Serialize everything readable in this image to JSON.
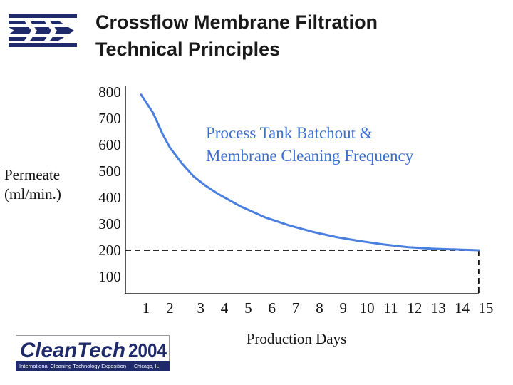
{
  "header": {
    "title_line1": "Crossflow Membrane Filtration",
    "title_line2": "Technical Principles",
    "logo_icon": "striped-arrows-logo-icon"
  },
  "chart_data": {
    "type": "line",
    "title": "",
    "ylabel_line1": "Permeate",
    "ylabel_line2": "(ml/min.)",
    "xlabel": "Production Days",
    "y_ticks": [
      "800",
      "700",
      "600",
      "500",
      "400",
      "300",
      "200",
      "100"
    ],
    "y_tick_values": [
      800,
      700,
      600,
      500,
      400,
      300,
      200,
      100
    ],
    "x_ticks": [
      "1",
      "2",
      "3",
      "4",
      "5",
      "6",
      "7",
      "8",
      "9",
      "10",
      "11",
      "12",
      "13",
      "14",
      "15"
    ],
    "ylim": [
      50,
      800
    ],
    "xlim": [
      1,
      15
    ],
    "grid": false,
    "series": [
      {
        "color": "#4a7fe0",
        "x": [
          1,
          1.3,
          1.7,
          2,
          2.5,
          3,
          3.5,
          4,
          5,
          6,
          7,
          8,
          9,
          10,
          11,
          12,
          13,
          14,
          15
        ],
        "values": [
          790,
          720,
          640,
          590,
          530,
          480,
          445,
          415,
          365,
          325,
          295,
          270,
          250,
          235,
          222,
          212,
          206,
          203,
          200
        ]
      }
    ],
    "threshold": {
      "value": 200,
      "style": "dashed"
    },
    "annotation_line1": "Process Tank Batchout &",
    "annotation_line2": "Membrane Cleaning Frequency"
  },
  "footer": {
    "logo_brand": "CleanTech",
    "logo_year": "2004",
    "logo_subtitle": "International Cleaning Technology Exposition",
    "logo_location": "Chicago, IL"
  }
}
